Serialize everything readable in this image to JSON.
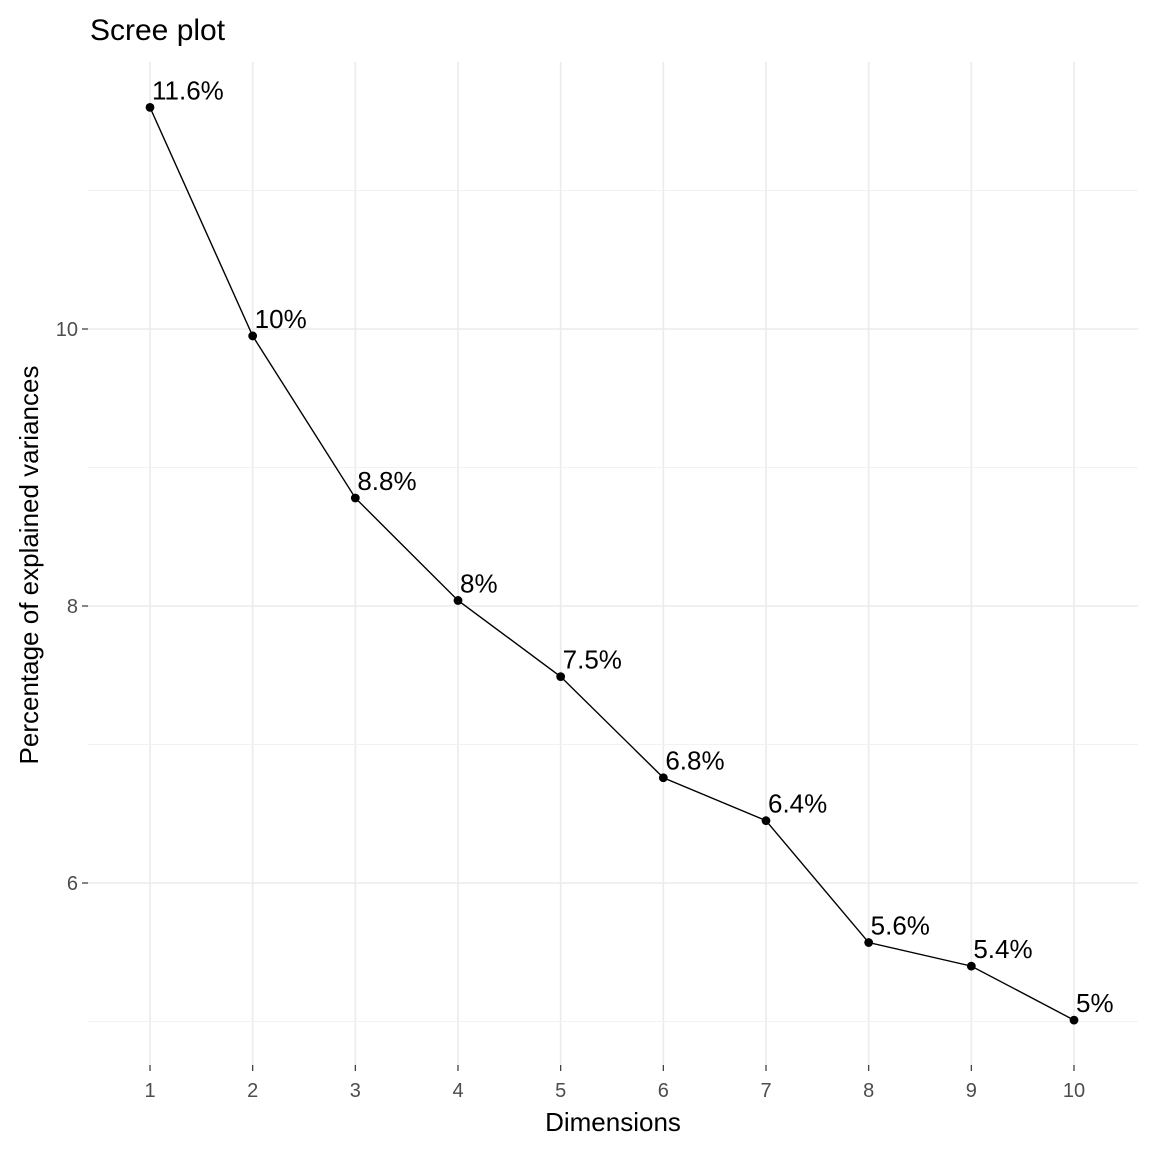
{
  "chart_data": {
    "type": "line",
    "title": "Scree plot",
    "xlabel": "Dimensions",
    "ylabel": "Percentage of explained variances",
    "categories": [
      "1",
      "2",
      "3",
      "4",
      "5",
      "6",
      "7",
      "8",
      "9",
      "10"
    ],
    "values": [
      11.6,
      9.95,
      8.78,
      8.04,
      7.49,
      6.76,
      6.45,
      5.57,
      5.4,
      5.01
    ],
    "data_labels": [
      "11.6%",
      "10%",
      "8.8%",
      "8%",
      "7.5%",
      "6.8%",
      "6.4%",
      "5.6%",
      "5.4%",
      "5%"
    ],
    "yticks": [
      6,
      8,
      10
    ],
    "ytick_labels": [
      "6",
      "8",
      "10"
    ],
    "ylim": [
      4.9,
      12.0
    ],
    "grid": true,
    "legend": "none",
    "colors": {
      "line": "#000000",
      "point": "#000000",
      "grid": "#ebebeb"
    }
  }
}
